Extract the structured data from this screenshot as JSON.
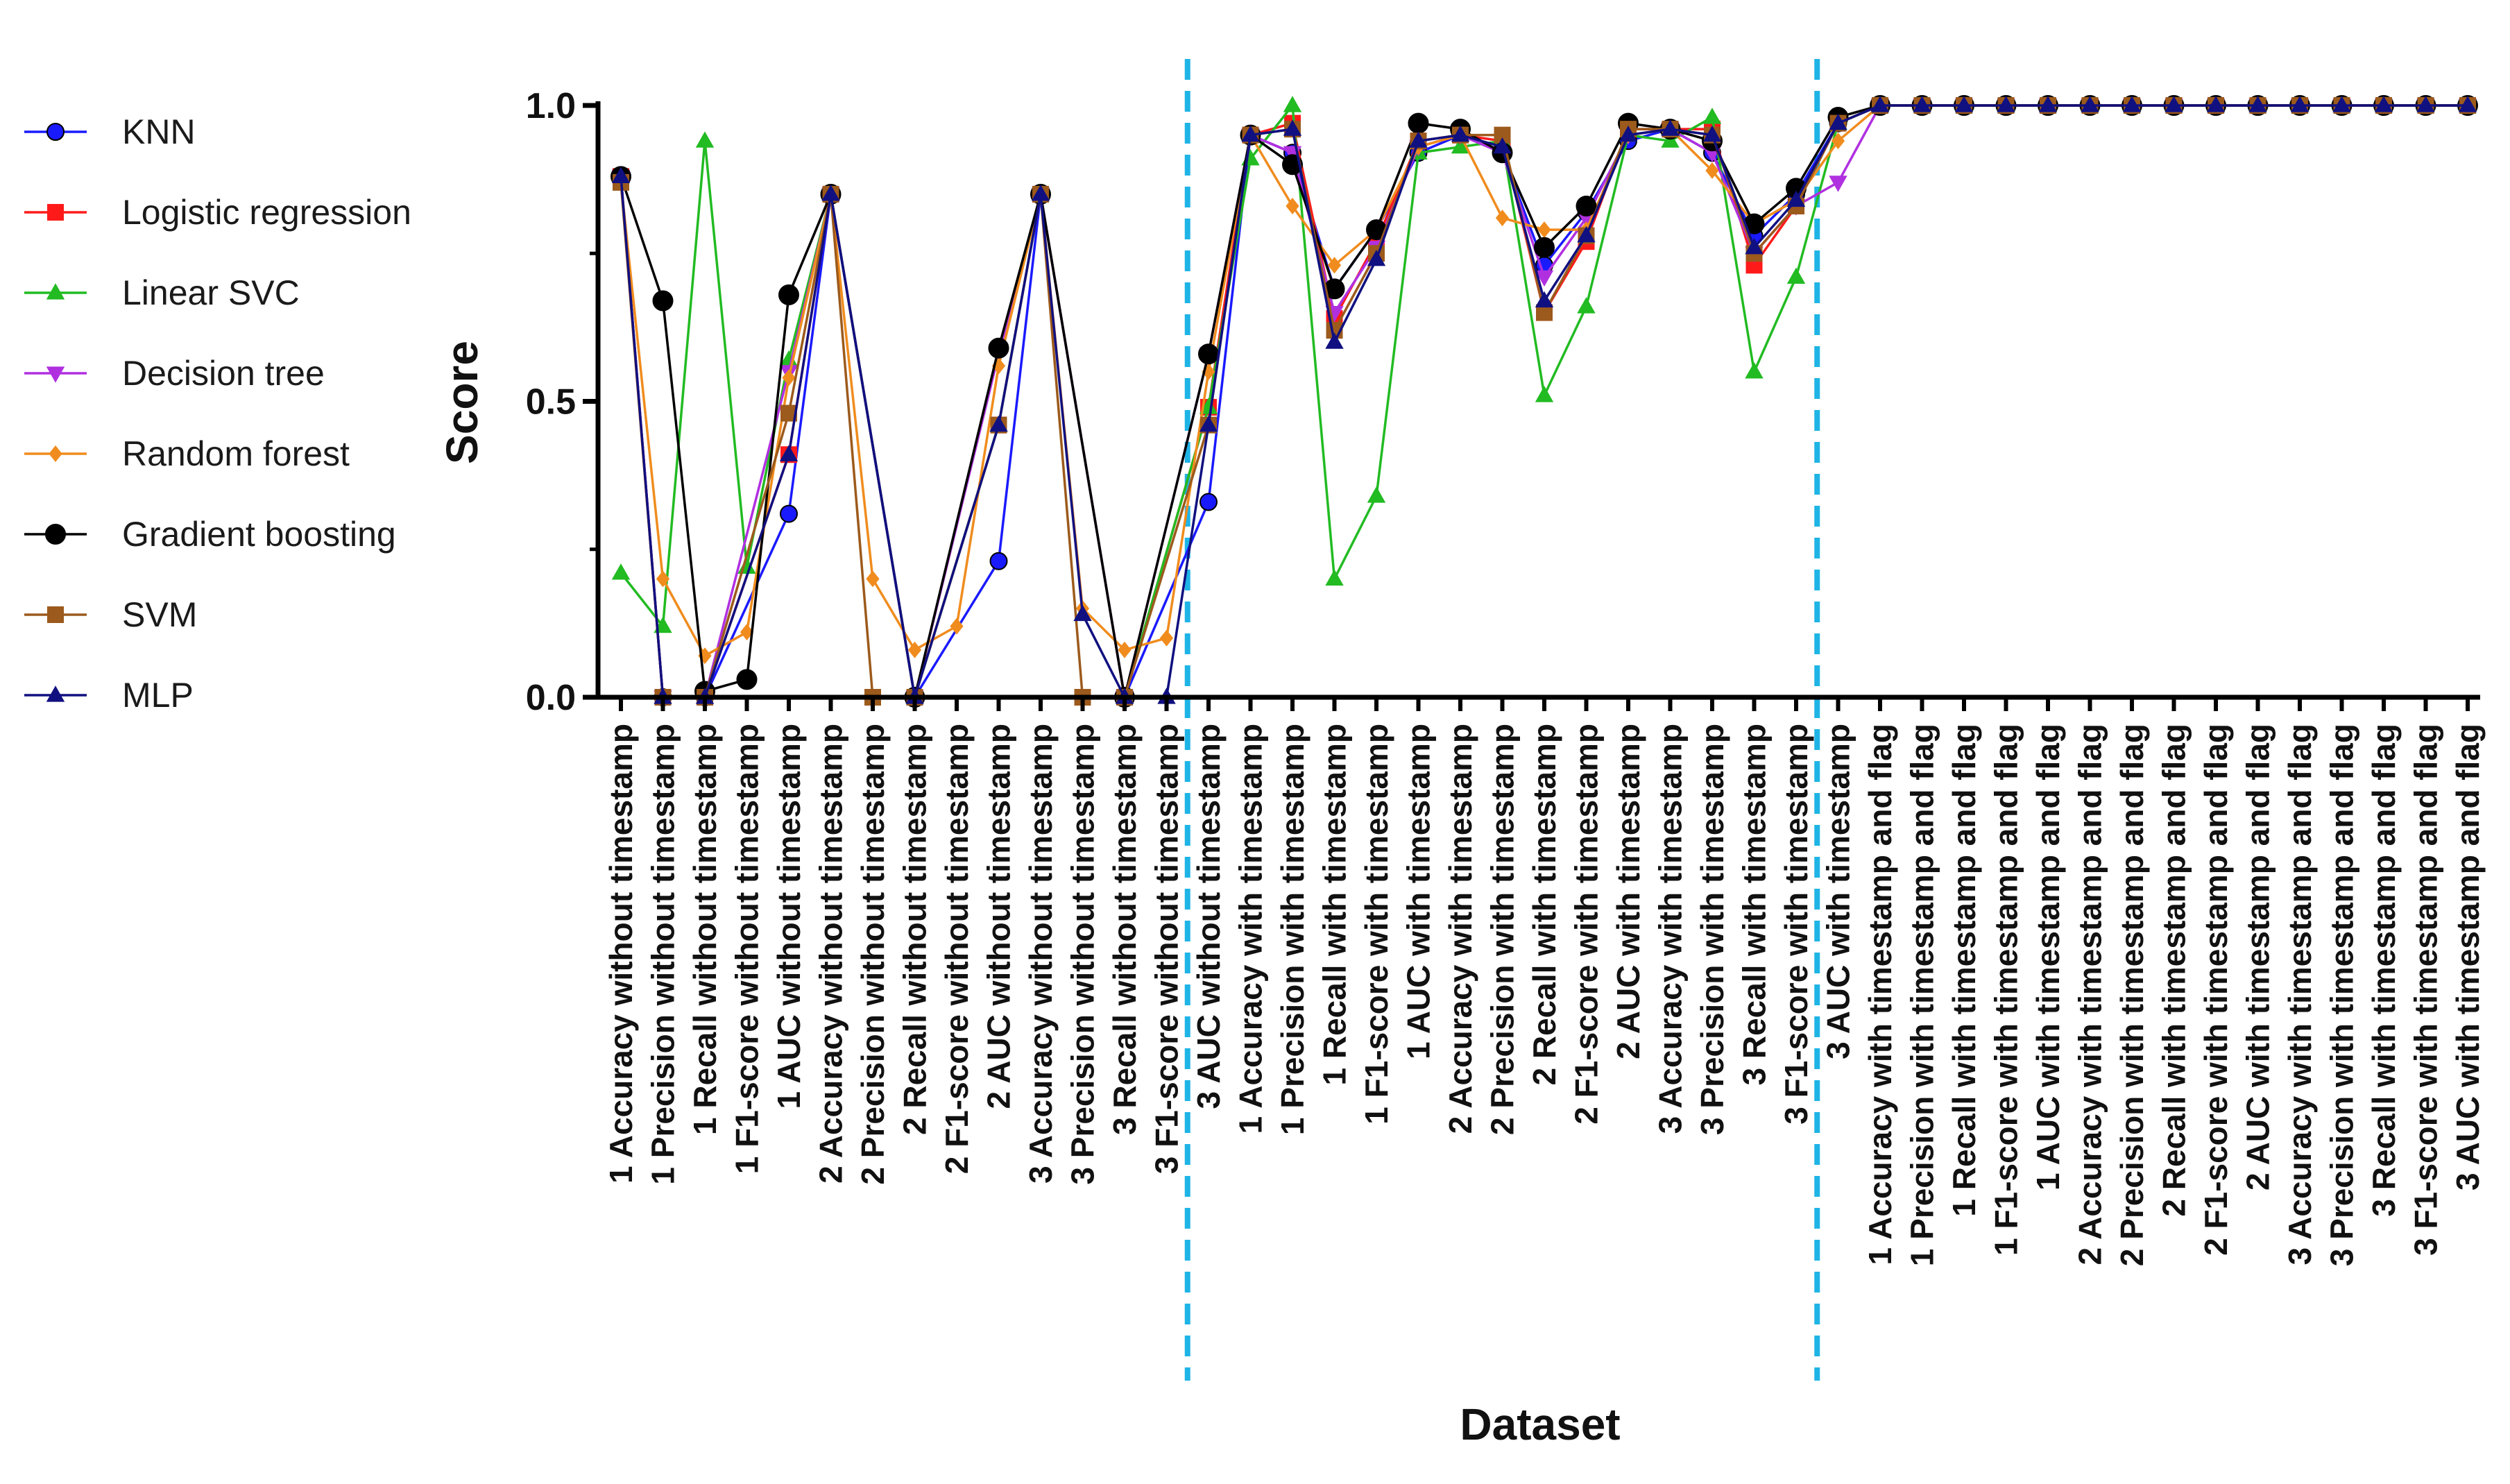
{
  "chart_data": {
    "type": "line",
    "title": "",
    "xlabel": "Dataset",
    "ylabel": "Score",
    "ylim": [
      0,
      1
    ],
    "yticks": [
      "0.0",
      "0.5",
      "1.0"
    ],
    "legend_position": "left",
    "separators_after_index": [
      13.5,
      28.5
    ],
    "categories": [
      "1 Accuracy without timestamp",
      "1 Precision without timestamp",
      "1 Recall without timestamp",
      "1 F1-score without timestamp",
      "1 AUC without timestamp",
      "2 Accuracy without timestamp",
      "2 Precision without timestamp",
      "2 Recall without timestamp",
      "2 F1-score without timestamp",
      "2 AUC without timestamp",
      "3 Accuracy without timestamp",
      "3 Precision without timestamp",
      "3 Recall without timestamp",
      "3 F1-score without timestamp",
      "3 AUC without timestamp",
      "1 Accuracy with timestamp",
      "1 Precision with timestamp",
      "1 Recall with timestamp",
      "1 F1-score with timestamp",
      "1 AUC with timestamp",
      "2 Accuracy with timestamp",
      "2 Precision with timestamp",
      "2 Recall with timestamp",
      "2 F1-score with timestamp",
      "2 AUC with timestamp",
      "3 Accuracy with timestamp",
      "3 Precision with timestamp",
      "3 Recall with timestamp",
      "3 F1-score with timestamp",
      "3 AUC with timestamp",
      "1 Accuracy with timestamp and flag",
      "1 Precision with timestamp and flag",
      "1 Recall with timestamp and flag",
      "1 F1-score with timestamp and flag",
      "1 AUC with timestamp and flag",
      "2 Accuracy with timestamp and flag",
      "2 Precision with timestamp and flag",
      "2 Recall with timestamp and flag",
      "2 F1-score with timestamp and flag",
      "2 AUC with timestamp and flag",
      "3 Accuracy with timestamp and flag",
      "3 Precision with timestamp and flag",
      "3 Recall with timestamp and flag",
      "3 F1-score with timestamp and flag",
      "3 AUC with timestamp and flag"
    ],
    "series": [
      {
        "name": "KNN",
        "color": "#1a1aff",
        "marker": "circle",
        "values": [
          0.88,
          0.0,
          0.0,
          null,
          0.31,
          0.85,
          null,
          0.0,
          null,
          0.23,
          0.85,
          null,
          0.0,
          null,
          0.33,
          0.95,
          0.92,
          0.69,
          0.79,
          0.92,
          0.95,
          0.92,
          0.73,
          0.82,
          0.94,
          0.96,
          0.92,
          0.78,
          0.85,
          0.97,
          1,
          1,
          1,
          1,
          1,
          1,
          1,
          1,
          1,
          1,
          1,
          1,
          1,
          1,
          1
        ]
      },
      {
        "name": "Logistic regression",
        "color": "#ff1a1a",
        "marker": "square",
        "values": [
          0.88,
          0.0,
          0.0,
          null,
          0.41,
          0.85,
          null,
          0.0,
          null,
          0.46,
          0.85,
          null,
          0.0,
          null,
          0.49,
          0.95,
          0.97,
          0.64,
          0.77,
          0.94,
          0.95,
          0.94,
          0.65,
          0.77,
          0.96,
          0.96,
          0.96,
          0.73,
          0.83,
          0.97,
          1,
          1,
          1,
          1,
          1,
          1,
          1,
          1,
          1,
          1,
          1,
          1,
          1,
          1,
          1
        ]
      },
      {
        "name": "Linear SVC",
        "color": "#22bb22",
        "marker": "triangle",
        "values": [
          0.21,
          0.12,
          0.94,
          0.22,
          0.57,
          0.85,
          null,
          0.0,
          null,
          0.46,
          0.85,
          null,
          0.0,
          null,
          0.49,
          0.91,
          1.0,
          0.2,
          0.34,
          0.92,
          0.93,
          0.94,
          0.51,
          0.66,
          0.95,
          0.94,
          0.98,
          0.55,
          0.71,
          0.97,
          1,
          1,
          1,
          1,
          1,
          1,
          1,
          1,
          1,
          1,
          1,
          1,
          1,
          1,
          1
        ]
      },
      {
        "name": "Decision tree",
        "color": "#b030e0",
        "marker": "triangle-down",
        "values": [
          0.88,
          0.0,
          0.0,
          null,
          0.55,
          0.85,
          null,
          0.0,
          null,
          0.58,
          0.85,
          null,
          0.0,
          null,
          0.58,
          0.95,
          0.92,
          0.65,
          0.76,
          0.93,
          0.95,
          0.92,
          0.71,
          0.81,
          0.95,
          0.96,
          0.92,
          0.75,
          0.83,
          0.87,
          1,
          1,
          1,
          1,
          1,
          1,
          1,
          1,
          1,
          1,
          1,
          1,
          1,
          1,
          1
        ]
      },
      {
        "name": "Random forest",
        "color": "#f08c1e",
        "marker": "diamond",
        "values": [
          0.87,
          0.2,
          0.07,
          0.11,
          0.54,
          0.85,
          0.2,
          0.08,
          0.12,
          0.56,
          0.85,
          0.15,
          0.08,
          0.1,
          0.55,
          0.95,
          0.83,
          0.73,
          0.79,
          0.93,
          0.95,
          0.81,
          0.79,
          0.79,
          0.95,
          0.96,
          0.89,
          0.8,
          0.84,
          0.94,
          1,
          1,
          1,
          1,
          1,
          1,
          1,
          1,
          1,
          1,
          1,
          1,
          1,
          1,
          1
        ]
      },
      {
        "name": "Gradient boosting",
        "color": "#000000",
        "marker": "circle",
        "values": [
          0.88,
          0.67,
          0.01,
          0.03,
          0.68,
          0.85,
          null,
          0.0,
          null,
          0.59,
          0.85,
          null,
          0.0,
          null,
          0.58,
          0.95,
          0.9,
          0.69,
          0.79,
          0.97,
          0.96,
          0.92,
          0.76,
          0.83,
          0.97,
          0.96,
          0.94,
          0.8,
          0.86,
          0.98,
          1,
          1,
          1,
          1,
          1,
          1,
          1,
          1,
          1,
          1,
          1,
          1,
          1,
          1,
          1
        ]
      },
      {
        "name": "SVM",
        "color": "#9c5a1c",
        "marker": "square",
        "values": [
          0.87,
          0.0,
          0.0,
          null,
          0.48,
          0.85,
          0.0,
          0.0,
          null,
          0.46,
          0.85,
          0.0,
          0.0,
          null,
          0.46,
          0.95,
          0.96,
          0.62,
          0.75,
          0.94,
          0.95,
          0.95,
          0.65,
          0.78,
          0.96,
          0.96,
          0.95,
          0.75,
          0.83,
          0.97,
          1,
          1,
          1,
          1,
          1,
          1,
          1,
          1,
          1,
          1,
          1,
          1,
          1,
          1,
          1
        ]
      },
      {
        "name": "MLP",
        "color": "#101080",
        "marker": "triangle",
        "values": [
          0.88,
          0.0,
          0.0,
          null,
          0.41,
          0.85,
          null,
          0.0,
          null,
          0.46,
          0.85,
          0.14,
          0.0,
          0.0,
          0.46,
          0.95,
          0.96,
          0.6,
          0.74,
          0.94,
          0.95,
          0.93,
          0.67,
          0.78,
          0.95,
          0.96,
          0.95,
          0.76,
          0.84,
          0.97,
          1,
          1,
          1,
          1,
          1,
          1,
          1,
          1,
          1,
          1,
          1,
          1,
          1,
          1,
          1
        ]
      }
    ]
  }
}
